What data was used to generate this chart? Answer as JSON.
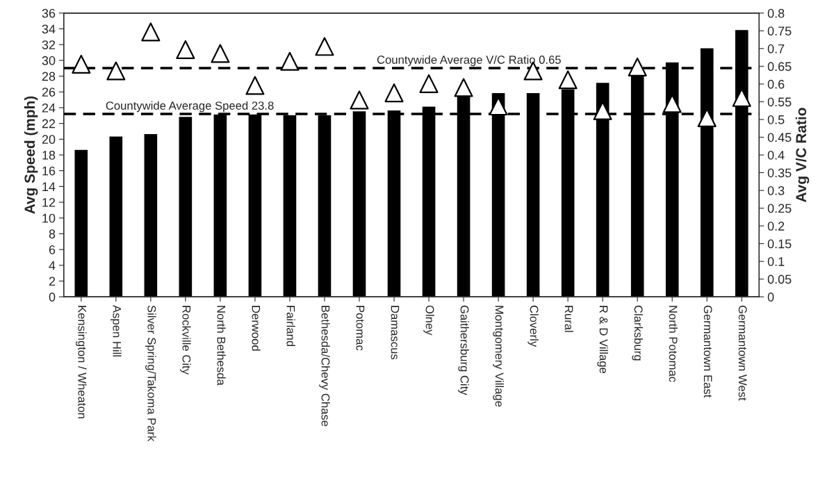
{
  "chart_data": {
    "type": "bar",
    "categories": [
      "Kensington / Wheaton",
      "Aspen Hill",
      "Silver Spring/Takoma Park",
      "Rockville City",
      "North Bethesda",
      "Derwood",
      "Fairland",
      "Bethesda/Chevy Chase",
      "Potomac",
      "Damascus",
      "Olney",
      "Gaithersburg City",
      "Montgomery Village",
      "Cloverly",
      "Rural",
      "R & D Village",
      "Clarksburg",
      "North Potomac",
      "Germantown East",
      "Germantown West"
    ],
    "series": [
      {
        "color": "#000000",
        "values": [
          18.7,
          20.4,
          20.7,
          22.9,
          23.2,
          23.2,
          23.1,
          23.1,
          23.6,
          23.7,
          24.2,
          25.5,
          25.9,
          25.9,
          26.4,
          27.2,
          28.2,
          29.8,
          31.6,
          33.9
        ]
      },
      {
        "type": "scatter",
        "axis": "y2",
        "color": "#ffffff",
        "marker": "triangle",
        "values": [
          0.656,
          0.637,
          0.747,
          0.697,
          0.686,
          0.596,
          0.664,
          0.706,
          0.555,
          0.575,
          0.601,
          0.59,
          0.538,
          0.637,
          0.612,
          0.525,
          0.648,
          0.545,
          0.505,
          0.562
        ]
      }
    ],
    "ylabel": "Avg Speed (mph)",
    "y2label": "Avg V/C Ratio",
    "ylim": [
      0,
      36
    ],
    "yticks": [
      0,
      2,
      4,
      6,
      8,
      10,
      12,
      14,
      16,
      18,
      20,
      22,
      24,
      26,
      28,
      30,
      32,
      34,
      36
    ],
    "y2lim": [
      0,
      0.8
    ],
    "y2ticks": [
      0,
      0.05,
      0.1,
      0.15,
      0.2,
      0.25,
      0.3,
      0.35,
      0.4,
      0.45,
      0.5,
      0.55,
      0.6,
      0.65,
      0.7,
      0.75,
      0.8
    ],
    "ref_lines": [
      {
        "axis": "y",
        "value": 23.2,
        "label": "Countywide Average Speed 23.8",
        "line_style": "dashed",
        "color": "#000000"
      },
      {
        "axis": "y2",
        "value": 0.645,
        "label": "Countywide Average V/C Ratio 0.65",
        "line_style": "dashed",
        "color": "#000000"
      }
    ],
    "grid": false,
    "legend": false
  }
}
